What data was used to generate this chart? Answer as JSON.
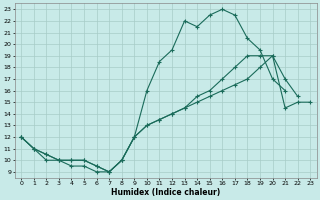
{
  "xlabel": "Humidex (Indice chaleur)",
  "bg_color": "#c8eae8",
  "grid_color": "#a8ccc8",
  "line_color": "#1a6b5a",
  "xlim": [
    -0.5,
    23.5
  ],
  "ylim": [
    8.5,
    23.5
  ],
  "xticks": [
    0,
    1,
    2,
    3,
    4,
    5,
    6,
    7,
    8,
    9,
    10,
    11,
    12,
    13,
    14,
    15,
    16,
    17,
    18,
    19,
    20,
    21,
    22,
    23
  ],
  "yticks": [
    9,
    10,
    11,
    12,
    13,
    14,
    15,
    16,
    17,
    18,
    19,
    20,
    21,
    22,
    23
  ],
  "line1_x": [
    0,
    1,
    2,
    3,
    4,
    5,
    6,
    7,
    8,
    9,
    10,
    11,
    12,
    13,
    14,
    15,
    16,
    17,
    18,
    19,
    20,
    21
  ],
  "line1_y": [
    12,
    11,
    10.5,
    10,
    10,
    10,
    9.5,
    9,
    10,
    12,
    16,
    18.5,
    19.5,
    22,
    21.5,
    22.5,
    23,
    22.5,
    20.5,
    19.5,
    17,
    16
  ],
  "line2_x": [
    0,
    1,
    2,
    3,
    4,
    5,
    6,
    7,
    8,
    9,
    10,
    11,
    12,
    13,
    14,
    15,
    16,
    17,
    18,
    19,
    20,
    21,
    22
  ],
  "line2_y": [
    12,
    11,
    10.5,
    10,
    10,
    10,
    9.5,
    9,
    10,
    12,
    13,
    13.5,
    14,
    14.5,
    15.5,
    16,
    17,
    18,
    19,
    19,
    19,
    17,
    15.5
  ],
  "line3_x": [
    0,
    1,
    2,
    3,
    4,
    5,
    6,
    7,
    8,
    9,
    10,
    11,
    12,
    13,
    14,
    15,
    16,
    17,
    18,
    19,
    20,
    21,
    22,
    23
  ],
  "line3_y": [
    12,
    11,
    10,
    10,
    9.5,
    9.5,
    9,
    9,
    10,
    12,
    13,
    13.5,
    14,
    14.5,
    15,
    15.5,
    16,
    16.5,
    17,
    18,
    19,
    14.5,
    15,
    15
  ]
}
